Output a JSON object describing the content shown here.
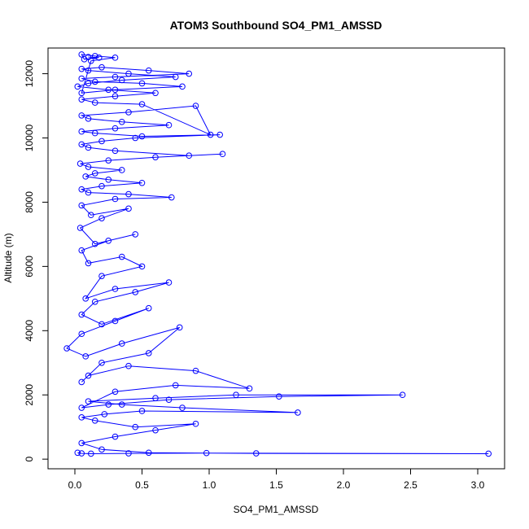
{
  "chart_data": {
    "type": "line",
    "title": "ATOM3 Southbound SO4_PM1_AMSSD",
    "xlabel": "SO4_PM1_AMSSD",
    "ylabel": "Altitude (m)",
    "xlim": [
      -0.2,
      3.2
    ],
    "ylim": [
      -300,
      12800
    ],
    "x_ticks": [
      0.0,
      0.5,
      1.0,
      1.5,
      2.0,
      2.5,
      3.0
    ],
    "x_tick_labels": [
      "0.0",
      "0.5",
      "1.0",
      "1.5",
      "2.0",
      "2.5",
      "3.0"
    ],
    "y_ticks": [
      0,
      2000,
      4000,
      6000,
      8000,
      10000,
      12000
    ],
    "y_tick_labels": [
      "0",
      "2000",
      "4000",
      "6000",
      "8000",
      "10000",
      "12000"
    ],
    "grid": false,
    "series_color": "#0000ff",
    "marker": "open-circle",
    "series": [
      {
        "x": [
          0.02,
          0.05,
          0.12,
          0.4,
          0.98,
          3.08,
          1.35,
          0.55,
          0.2,
          0.05,
          0.3,
          0.6,
          0.9,
          0.45,
          0.15,
          0.05,
          0.22,
          0.5,
          1.66,
          0.8,
          0.35,
          0.1,
          0.6,
          1.2,
          2.44,
          1.52,
          0.7,
          0.25,
          0.05,
          0.3,
          0.75,
          1.3,
          0.9,
          0.4,
          0.1,
          0.05,
          0.2,
          0.55,
          0.78,
          0.35,
          0.08,
          -0.06,
          0.05,
          0.3,
          0.55,
          0.2,
          0.05,
          0.15,
          0.45,
          0.7,
          0.3,
          0.08,
          0.2,
          0.5,
          0.35,
          0.1,
          0.05,
          0.25,
          0.45,
          0.15,
          0.04,
          0.2,
          0.4,
          0.12,
          0.05,
          0.3,
          0.72,
          0.4,
          0.1,
          0.05,
          0.2,
          0.5,
          0.25,
          0.08,
          0.15,
          0.35,
          0.1,
          0.04,
          0.25,
          0.6,
          1.1,
          0.85,
          0.3,
          0.1,
          0.05,
          0.2,
          0.45,
          1.08,
          0.5,
          0.15,
          0.05,
          0.3,
          0.7,
          0.35,
          0.1,
          0.05,
          0.4,
          0.9,
          1.01,
          0.5,
          0.15,
          0.05,
          0.3,
          0.6,
          0.25,
          0.02,
          0.1,
          0.35,
          0.75,
          0.4,
          0.1,
          0.05,
          0.2,
          0.55,
          0.85,
          0.3,
          0.05,
          0.15,
          0.5,
          0.8,
          0.3,
          0.05,
          0.12,
          0.3,
          0.15,
          0.05,
          0.07,
          0.18,
          0.1
        ],
        "y": [
          200,
          180,
          170,
          180,
          190,
          170,
          180,
          200,
          300,
          500,
          700,
          900,
          1100,
          1000,
          1200,
          1300,
          1400,
          1500,
          1450,
          1600,
          1700,
          1800,
          1900,
          2000,
          2000,
          1950,
          1850,
          1700,
          1600,
          2100,
          2300,
          2200,
          2750,
          2900,
          2600,
          2400,
          3000,
          3300,
          4100,
          3600,
          3200,
          3450,
          3900,
          4300,
          4700,
          4200,
          4500,
          4900,
          5200,
          5500,
          5300,
          5000,
          5700,
          6000,
          6300,
          6100,
          6500,
          6800,
          7000,
          6700,
          7200,
          7500,
          7800,
          7600,
          7900,
          8100,
          8150,
          8250,
          8300,
          8400,
          8500,
          8600,
          8700,
          8800,
          8900,
          9000,
          9100,
          9200,
          9300,
          9400,
          9500,
          9450,
          9600,
          9700,
          9800,
          9900,
          10000,
          10100,
          10050,
          10150,
          10200,
          10300,
          10400,
          10500,
          10600,
          10700,
          10800,
          11000,
          10100,
          11050,
          11100,
          11200,
          11300,
          11400,
          11500,
          11600,
          11700,
          11800,
          11900,
          12000,
          12100,
          12150,
          12200,
          12100,
          12000,
          11900,
          11850,
          11750,
          11700,
          11600,
          11500,
          11400,
          12400,
          12500,
          12550,
          12600,
          12450,
          12500,
          12520
        ]
      }
    ]
  }
}
